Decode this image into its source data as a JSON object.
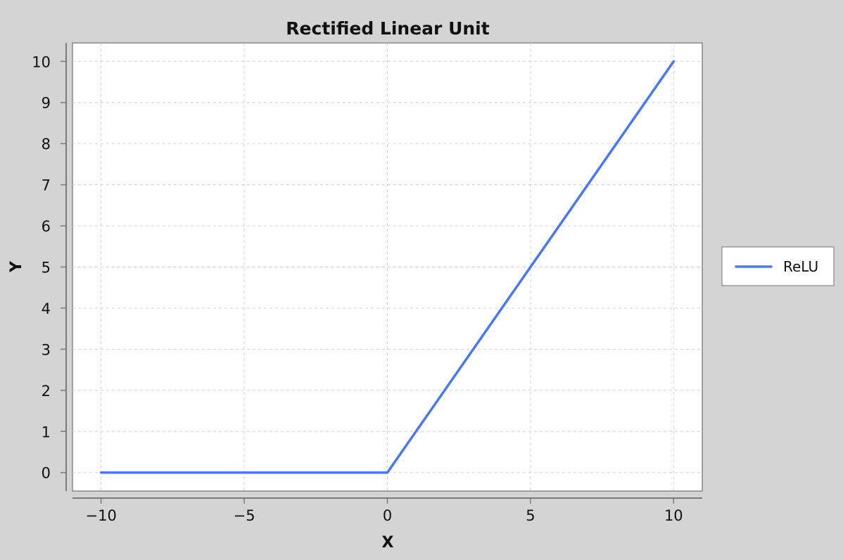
{
  "chart_data": {
    "type": "line",
    "title": "Rectified Linear Unit",
    "xlabel": "X",
    "ylabel": "Y",
    "xlim": [
      -11,
      11
    ],
    "ylim": [
      -0.45,
      10.45
    ],
    "x_ticks": [
      -10,
      -5,
      0,
      5,
      10
    ],
    "y_ticks": [
      0,
      1,
      2,
      3,
      4,
      5,
      6,
      7,
      8,
      9,
      10
    ],
    "grid": true,
    "legend_position": "right",
    "series": [
      {
        "name": "ReLU",
        "color": "#4a78f5",
        "x": [
          -10,
          -5,
          0,
          5,
          10
        ],
        "y": [
          0,
          0,
          0,
          5,
          10
        ]
      }
    ]
  }
}
